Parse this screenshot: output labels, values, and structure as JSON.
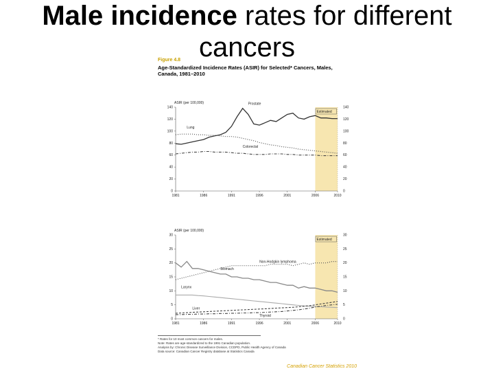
{
  "slide": {
    "title_bold": "Male incidence",
    "title_rest": " rates for different cancers"
  },
  "figure": {
    "label": "Figure 4.8",
    "heading": "Age-Standardized Incidence Rates (ASIR) for Selected* Cancers, Males, Canada, 1981–2010"
  },
  "footnotes": [
    "* Rates for 10 most common cancers for males.",
    "Note: Rates are age-standardized to the 1991 Canadian population.",
    "Analysis by: Chronic Disease Surveillance Division, CCDPD, Public Health Agency of Canada",
    "Data source: Canadian Cancer Registry database at Statistics Canada"
  ],
  "footer_brand": "Canadian Cancer Statistics 2010",
  "colors": {
    "estimated_band": "#f7e6b0",
    "series_dark": "#333333",
    "series_gray": "#888888"
  },
  "chart_data": [
    {
      "type": "line",
      "ylabel": "ASIR (per 100,000)",
      "ylim": [
        0,
        140
      ],
      "yticks": [
        "0",
        "20",
        "40",
        "60",
        "80",
        "100",
        "120",
        "140"
      ],
      "right_yticks": [
        "0",
        "20",
        "40",
        "60",
        "80",
        "100",
        "120",
        "140"
      ],
      "xticks": [
        "1981",
        "1986",
        "1991",
        "1996",
        "2001",
        "2006",
        "2010"
      ],
      "band_label": "Estimated",
      "band_range": [
        2006,
        2010
      ],
      "x": [
        1981,
        1982,
        1983,
        1984,
        1985,
        1986,
        1987,
        1988,
        1989,
        1990,
        1991,
        1992,
        1993,
        1994,
        1995,
        1996,
        1997,
        1998,
        1999,
        2000,
        2001,
        2002,
        2003,
        2004,
        2005,
        2006,
        2007,
        2008,
        2009,
        2010
      ],
      "series": [
        {
          "name": "Prostate",
          "style": "solid",
          "values": [
            79,
            78,
            80,
            82,
            84,
            86,
            90,
            92,
            94,
            98,
            108,
            124,
            138,
            128,
            112,
            110,
            114,
            118,
            116,
            122,
            128,
            130,
            122,
            120,
            124,
            126,
            122,
            122,
            121,
            121
          ]
        },
        {
          "name": "Lung",
          "style": "dotted",
          "values": [
            94,
            95,
            95,
            95,
            94,
            94,
            93,
            93,
            92,
            91,
            91,
            90,
            88,
            86,
            84,
            81,
            79,
            77,
            76,
            74,
            73,
            72,
            70,
            69,
            68,
            67,
            66,
            65,
            64,
            63
          ]
        },
        {
          "name": "Colorectal",
          "style": "dashdot",
          "values": [
            62,
            63,
            64,
            65,
            65,
            66,
            66,
            65,
            65,
            65,
            64,
            63,
            63,
            62,
            61,
            61,
            61,
            62,
            62,
            62,
            61,
            61,
            60,
            60,
            60,
            60,
            59,
            59,
            59,
            59
          ]
        }
      ]
    },
    {
      "type": "line",
      "ylabel": "ASIR (per 100,000)",
      "ylim": [
        0,
        30
      ],
      "yticks": [
        "0",
        "5",
        "10",
        "15",
        "20",
        "25",
        "30"
      ],
      "right_yticks": [
        "0",
        "5",
        "10",
        "15",
        "20",
        "25",
        "30"
      ],
      "xticks": [
        "1981",
        "1986",
        "1991",
        "1996",
        "2001",
        "2006",
        "2010"
      ],
      "band_label": "Estimated",
      "band_range": [
        2006,
        2010
      ],
      "x": [
        1981,
        1982,
        1983,
        1984,
        1985,
        1986,
        1987,
        1988,
        1989,
        1990,
        1991,
        1992,
        1993,
        1994,
        1995,
        1996,
        1997,
        1998,
        1999,
        2000,
        2001,
        2002,
        2003,
        2004,
        2005,
        2006,
        2007,
        2008,
        2009,
        2010
      ],
      "series": [
        {
          "name": "Non-Hodgkin lymphoma",
          "style": "dotted",
          "values": [
            14,
            14.5,
            15,
            15.5,
            16,
            16.5,
            17,
            17.5,
            18,
            18.5,
            19,
            19,
            19,
            19,
            19,
            19,
            19,
            19.5,
            19.5,
            19.5,
            19.5,
            19,
            19.5,
            20,
            19.5,
            20,
            20,
            20,
            20.5,
            20.5
          ]
        },
        {
          "name": "Stomach",
          "style": "gray",
          "values": [
            20,
            18.5,
            20.5,
            18,
            18,
            17.5,
            17,
            16.5,
            16,
            16,
            15,
            15,
            14.5,
            14.5,
            14,
            14,
            13.5,
            13,
            13,
            12.5,
            12,
            12,
            11,
            11.5,
            11,
            11,
            10.5,
            10,
            10,
            9.5
          ]
        },
        {
          "name": "Larynx",
          "style": "gray-light",
          "values": [
            8.5,
            8.5,
            8.5,
            8.5,
            8.3,
            8.2,
            8.0,
            7.8,
            7.6,
            7.4,
            7.2,
            7.0,
            6.8,
            6.6,
            6.4,
            6.2,
            6.0,
            5.8,
            5.6,
            5.4,
            5.2,
            5.0,
            4.8,
            4.6,
            4.5,
            4.4,
            4.3,
            4.2,
            4.1,
            4.0
          ]
        },
        {
          "name": "Liver",
          "style": "dashed",
          "values": [
            2.0,
            2.1,
            2.2,
            2.3,
            2.4,
            2.5,
            2.6,
            2.7,
            2.8,
            2.9,
            3.0,
            3.1,
            3.2,
            3.3,
            3.4,
            3.5,
            3.6,
            3.7,
            3.8,
            3.9,
            4.0,
            4.1,
            4.3,
            4.5,
            4.7,
            5.0,
            5.3,
            5.6,
            5.9,
            6.2
          ]
        },
        {
          "name": "Thyroid",
          "style": "dashdot",
          "values": [
            1.5,
            1.5,
            1.6,
            1.6,
            1.7,
            1.7,
            1.8,
            1.8,
            1.9,
            1.9,
            2.0,
            2.0,
            2.1,
            2.1,
            2.2,
            2.2,
            2.3,
            2.4,
            2.5,
            2.6,
            2.8,
            3.0,
            3.2,
            3.5,
            3.8,
            4.2,
            4.5,
            4.8,
            5.0,
            5.2
          ]
        }
      ]
    }
  ]
}
